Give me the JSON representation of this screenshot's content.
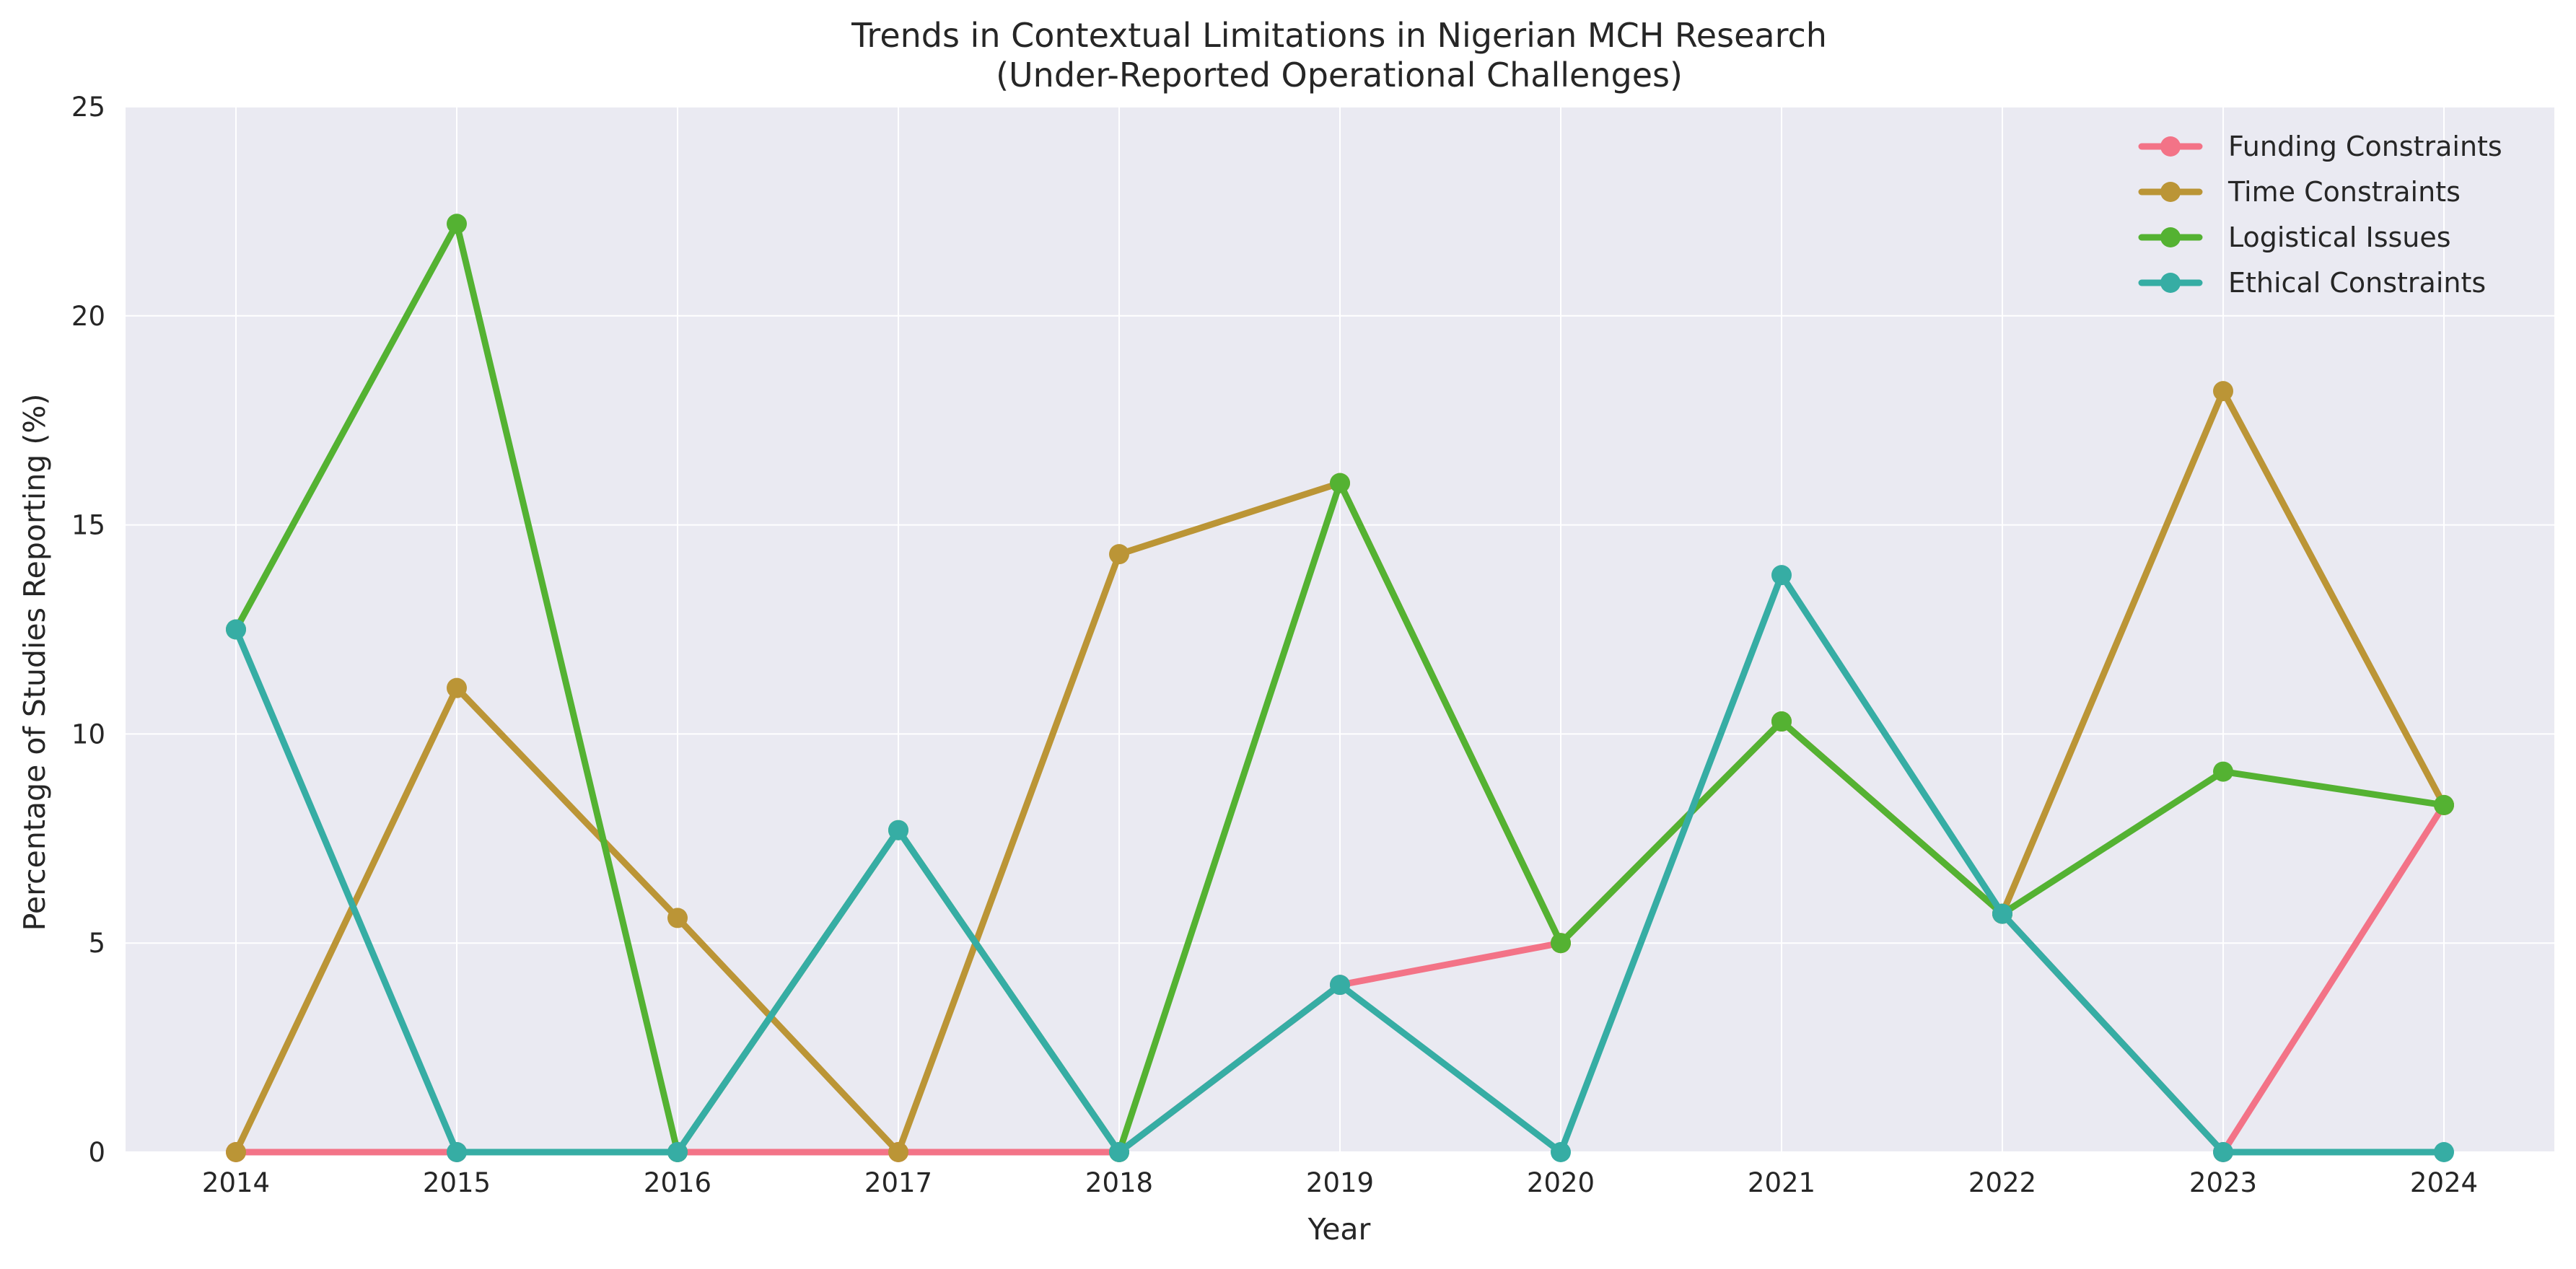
{
  "chart_data": {
    "type": "line",
    "title": "Trends in Contextual Limitations in Nigerian MCH Research",
    "subtitle": "(Under-Reported Operational Challenges)",
    "xlabel": "Year",
    "ylabel": "Percentage of Studies Reporting (%)",
    "x": [
      "2014",
      "2015",
      "2016",
      "2017",
      "2018",
      "2019",
      "2020",
      "2021",
      "2022",
      "2023",
      "2024"
    ],
    "ylim": [
      0,
      25
    ],
    "yticks": [
      "0",
      "5",
      "10",
      "15",
      "20",
      "25"
    ],
    "grid": true,
    "legend_position": "top-right",
    "background": "#eaeaf2",
    "series": [
      {
        "name": "Funding Constraints",
        "color": "#f37387",
        "values": [
          0,
          0,
          0,
          0,
          0,
          4.0,
          5.0,
          10.3,
          5.7,
          0,
          8.3
        ]
      },
      {
        "name": "Time Constraints",
        "color": "#bb9536",
        "values": [
          0,
          11.1,
          5.6,
          0,
          14.3,
          16.0,
          5.0,
          10.3,
          5.7,
          18.2,
          8.3
        ]
      },
      {
        "name": "Logistical Issues",
        "color": "#54b232",
        "values": [
          12.5,
          22.2,
          0,
          7.7,
          0,
          16.0,
          5.0,
          10.3,
          5.7,
          9.1,
          8.3
        ]
      },
      {
        "name": "Ethical Constraints",
        "color": "#36ada4",
        "values": [
          12.5,
          0,
          0,
          7.7,
          0,
          4.0,
          0,
          13.8,
          5.7,
          0,
          0
        ]
      }
    ]
  }
}
